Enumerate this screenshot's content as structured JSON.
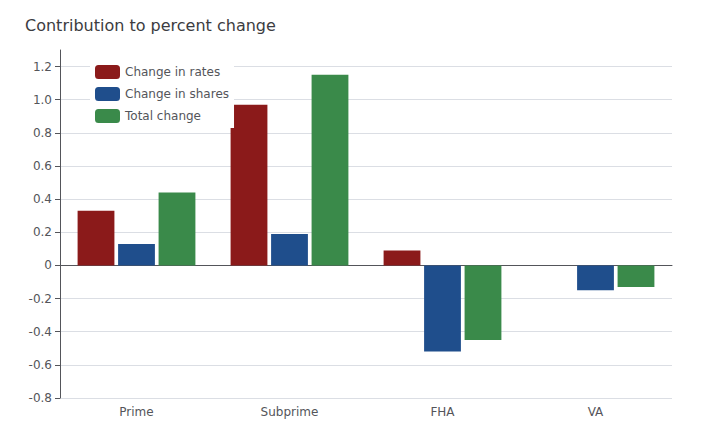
{
  "chart_data": {
    "type": "bar",
    "title": "Contribution to percent change",
    "categories": [
      "Prime",
      "Subprime",
      "FHA",
      "VA"
    ],
    "series": [
      {
        "name": "Change in rates",
        "color": "#8B1A1A",
        "values": [
          0.33,
          0.97,
          0.09,
          0.0
        ]
      },
      {
        "name": "Change in shares",
        "color": "#1F4E8C",
        "values": [
          0.13,
          0.19,
          -0.52,
          -0.15
        ]
      },
      {
        "name": "Total change",
        "color": "#3A8A4A",
        "values": [
          0.44,
          1.15,
          -0.45,
          -0.13
        ]
      }
    ],
    "ylim": [
      -0.8,
      1.3
    ],
    "yticks": [
      -0.8,
      -0.6,
      -0.4,
      -0.2,
      0,
      0.2,
      0.4,
      0.6,
      0.8,
      {
        "value": 1.0,
        "label": "1.0"
      },
      1.2
    ],
    "grid": true,
    "legend": "upper left"
  }
}
